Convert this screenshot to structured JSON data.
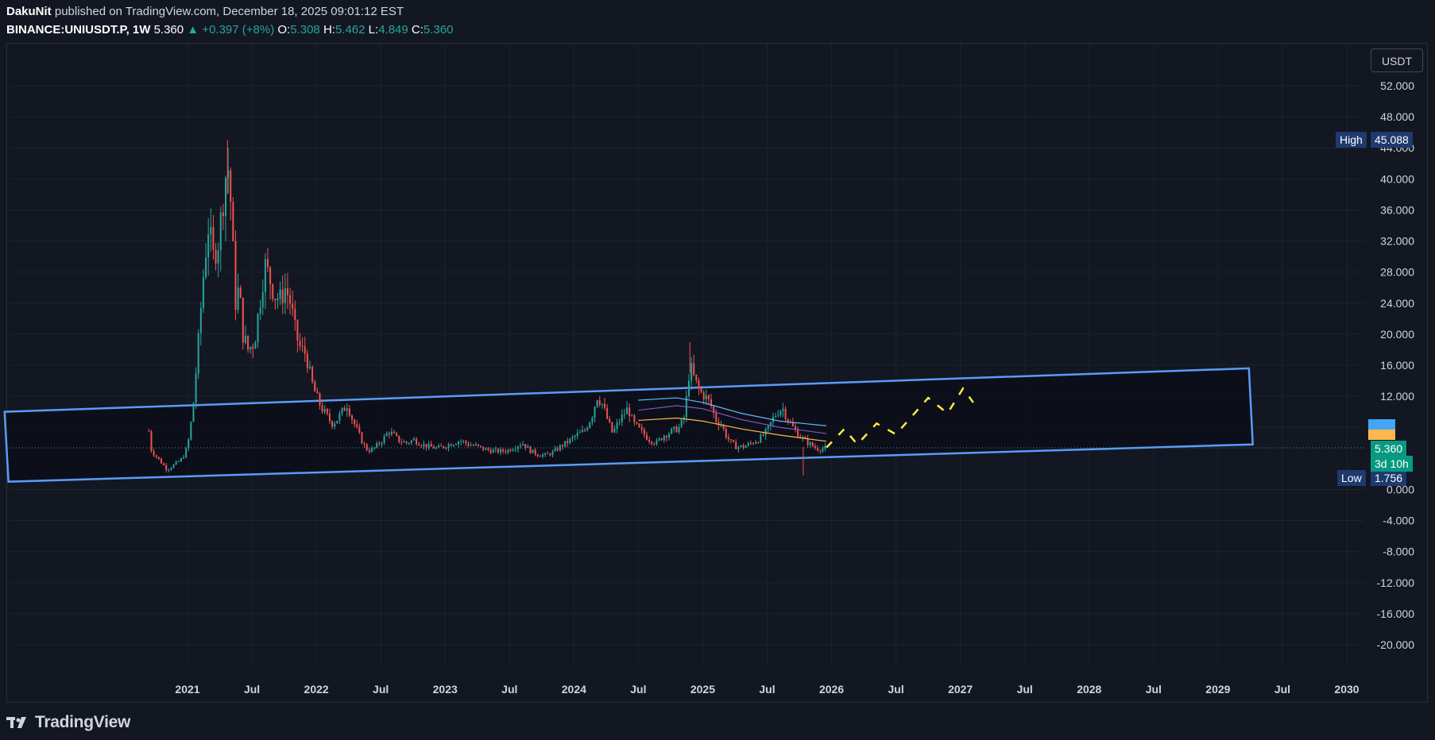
{
  "header": {
    "author": "DakuNit",
    "published": "published on TradingView.com, December 18, 2025 09:01:12 EST",
    "symbol": "BINANCE:UNIUSDT.P, 1W",
    "last": "5.360",
    "change": "▲ +0.397 (+8%)",
    "o_label": "O:",
    "o": "5.308",
    "h_label": "H:",
    "h": "5.462",
    "l_label": "L:",
    "l": "4.849",
    "c_label": "C:",
    "c": "5.360"
  },
  "currency_button": "USDT",
  "high_tag": {
    "label": "High",
    "value": "45.088"
  },
  "low_tag": {
    "label": "Low",
    "value": "1.756"
  },
  "price_tag": {
    "value": "5.360",
    "countdown": "3d 10h"
  },
  "footer": {
    "brand": "TradingView"
  },
  "colors": {
    "bg": "#131722",
    "up": "#26a69a",
    "down": "#ef5350",
    "channel": "#5b9cf6",
    "projection": "#ffeb3b",
    "label_bg": "#1e3a6e"
  },
  "chart_data": {
    "type": "candlestick",
    "symbol": "BINANCE:UNIUSDT.P",
    "timeframe": "1W",
    "y_ticks": [
      52,
      48,
      44,
      40,
      36,
      32,
      28,
      24,
      20,
      16,
      12,
      8,
      0,
      -4,
      -8,
      -12,
      -16,
      -20
    ],
    "y_tick_labels": [
      "52.000",
      "48.000",
      "44.000",
      "40.000",
      "36.000",
      "32.000",
      "28.000",
      "24.000",
      "20.000",
      "16.000",
      "12.000",
      "",
      "0.000",
      "-4.000",
      "-8.000",
      "-12.000",
      "-16.000",
      "-20.000"
    ],
    "ylim": [
      -23.3,
      58.1
    ],
    "x_ticks": [
      "2021",
      "Jul",
      "2022",
      "Jul",
      "2023",
      "Jul",
      "2024",
      "Jul",
      "2025",
      "Jul",
      "2026",
      "Jul",
      "2027",
      "Jul",
      "2028",
      "Jul",
      "2029",
      "Jul",
      "2030"
    ],
    "x_tick_years": [
      2021.0,
      2021.5,
      2022.0,
      2022.5,
      2023.0,
      2023.5,
      2024.0,
      2024.5,
      2025.0,
      2025.5,
      2026.0,
      2026.5,
      2027.0,
      2027.5,
      2028.0,
      2028.5,
      2029.0,
      2029.5,
      2030.0
    ],
    "xlim": [
      2019.56,
      2030.3
    ],
    "price_path": [
      [
        2020.7,
        7.5
      ],
      [
        2020.72,
        5.0
      ],
      [
        2020.78,
        3.8
      ],
      [
        2020.84,
        2.6
      ],
      [
        2020.9,
        3.2
      ],
      [
        2020.96,
        4.0
      ],
      [
        2021.0,
        5.5
      ],
      [
        2021.04,
        10.0
      ],
      [
        2021.08,
        18.0
      ],
      [
        2021.12,
        27.0
      ],
      [
        2021.16,
        34.0
      ],
      [
        2021.2,
        30.0
      ],
      [
        2021.24,
        32.0
      ],
      [
        2021.28,
        38.0
      ],
      [
        2021.31,
        42.5
      ],
      [
        2021.34,
        36.0
      ],
      [
        2021.37,
        24.0
      ],
      [
        2021.4,
        26.0
      ],
      [
        2021.43,
        20.0
      ],
      [
        2021.47,
        18.0
      ],
      [
        2021.52,
        19.0
      ],
      [
        2021.56,
        24.0
      ],
      [
        2021.6,
        29.0
      ],
      [
        2021.64,
        27.0
      ],
      [
        2021.68,
        25.0
      ],
      [
        2021.72,
        24.5
      ],
      [
        2021.76,
        26.0
      ],
      [
        2021.8,
        24.0
      ],
      [
        2021.84,
        20.0
      ],
      [
        2021.88,
        18.0
      ],
      [
        2021.92,
        17.5
      ],
      [
        2021.96,
        14.0
      ],
      [
        2022.0,
        12.0
      ],
      [
        2022.04,
        10.5
      ],
      [
        2022.08,
        9.5
      ],
      [
        2022.12,
        8.5
      ],
      [
        2022.16,
        9.0
      ],
      [
        2022.2,
        10.0
      ],
      [
        2022.24,
        11.0
      ],
      [
        2022.28,
        9.0
      ],
      [
        2022.32,
        7.5
      ],
      [
        2022.36,
        6.0
      ],
      [
        2022.4,
        5.0
      ],
      [
        2022.44,
        5.2
      ],
      [
        2022.48,
        5.8
      ],
      [
        2022.52,
        6.5
      ],
      [
        2022.56,
        7.5
      ],
      [
        2022.6,
        7.0
      ],
      [
        2022.64,
        6.3
      ],
      [
        2022.7,
        6.0
      ],
      [
        2022.76,
        6.4
      ],
      [
        2022.82,
        5.8
      ],
      [
        2022.88,
        5.5
      ],
      [
        2022.94,
        5.3
      ],
      [
        2023.0,
        5.6
      ],
      [
        2023.06,
        6.0
      ],
      [
        2023.12,
        6.3
      ],
      [
        2023.18,
        5.8
      ],
      [
        2023.24,
        5.6
      ],
      [
        2023.3,
        5.2
      ],
      [
        2023.36,
        5.0
      ],
      [
        2023.42,
        4.9
      ],
      [
        2023.48,
        5.0
      ],
      [
        2023.54,
        5.5
      ],
      [
        2023.6,
        6.0
      ],
      [
        2023.66,
        5.0
      ],
      [
        2023.72,
        4.5
      ],
      [
        2023.78,
        4.4
      ],
      [
        2023.84,
        4.8
      ],
      [
        2023.9,
        5.6
      ],
      [
        2023.96,
        6.2
      ],
      [
        2024.02,
        7.0
      ],
      [
        2024.08,
        7.5
      ],
      [
        2024.14,
        9.5
      ],
      [
        2024.18,
        12.0
      ],
      [
        2024.22,
        11.0
      ],
      [
        2024.26,
        9.0
      ],
      [
        2024.3,
        7.2
      ],
      [
        2024.34,
        8.5
      ],
      [
        2024.38,
        9.5
      ],
      [
        2024.42,
        10.5
      ],
      [
        2024.46,
        8.5
      ],
      [
        2024.52,
        7.5
      ],
      [
        2024.58,
        6.5
      ],
      [
        2024.64,
        6.0
      ],
      [
        2024.7,
        7.0
      ],
      [
        2024.76,
        7.5
      ],
      [
        2024.82,
        8.0
      ],
      [
        2024.86,
        9.5
      ],
      [
        2024.9,
        16.0
      ],
      [
        2024.94,
        14.0
      ],
      [
        2024.98,
        12.5
      ],
      [
        2025.02,
        12.0
      ],
      [
        2025.06,
        11.0
      ],
      [
        2025.1,
        9.0
      ],
      [
        2025.14,
        8.5
      ],
      [
        2025.18,
        7.0
      ],
      [
        2025.22,
        6.0
      ],
      [
        2025.26,
        5.5
      ],
      [
        2025.32,
        5.5
      ],
      [
        2025.38,
        6.0
      ],
      [
        2025.44,
        6.5
      ],
      [
        2025.5,
        7.5
      ],
      [
        2025.54,
        9.0
      ],
      [
        2025.58,
        10.0
      ],
      [
        2025.62,
        10.5
      ],
      [
        2025.66,
        9.0
      ],
      [
        2025.7,
        8.0
      ],
      [
        2025.74,
        7.2
      ],
      [
        2025.78,
        6.5
      ],
      [
        2025.82,
        6.0
      ],
      [
        2025.86,
        5.5
      ],
      [
        2025.9,
        5.2
      ],
      [
        2025.96,
        5.36
      ]
    ],
    "ma_lines": [
      {
        "color": "#ffb74d",
        "points": [
          [
            2024.5,
            8.9
          ],
          [
            2024.8,
            9.2
          ],
          [
            2025.0,
            8.8
          ],
          [
            2025.3,
            7.8
          ],
          [
            2025.6,
            7.0
          ],
          [
            2025.96,
            6.2
          ]
        ]
      },
      {
        "color": "#7e57c2",
        "points": [
          [
            2024.5,
            10.2
          ],
          [
            2024.8,
            10.8
          ],
          [
            2025.0,
            10.4
          ],
          [
            2025.3,
            9.0
          ],
          [
            2025.6,
            8.0
          ],
          [
            2025.96,
            7.2
          ]
        ]
      },
      {
        "color": "#64b5f6",
        "points": [
          [
            2024.5,
            11.5
          ],
          [
            2024.8,
            11.8
          ],
          [
            2025.0,
            11.2
          ],
          [
            2025.3,
            9.8
          ],
          [
            2025.6,
            8.8
          ],
          [
            2025.96,
            8.2
          ]
        ]
      }
    ],
    "channel": [
      [
        2019.58,
        10.0
      ],
      [
        2029.24,
        15.6
      ],
      [
        2029.27,
        5.8
      ],
      [
        2019.61,
        1.0
      ]
    ],
    "projection": [
      [
        2025.96,
        5.4
      ],
      [
        2026.1,
        7.8
      ],
      [
        2026.2,
        5.8
      ],
      [
        2026.35,
        8.5
      ],
      [
        2026.5,
        7.1
      ],
      [
        2026.75,
        11.8
      ],
      [
        2026.9,
        9.8
      ],
      [
        2027.02,
        13.0
      ],
      [
        2027.1,
        11.2
      ]
    ],
    "last_price": 5.36,
    "high": 45.088,
    "low": 1.756
  }
}
